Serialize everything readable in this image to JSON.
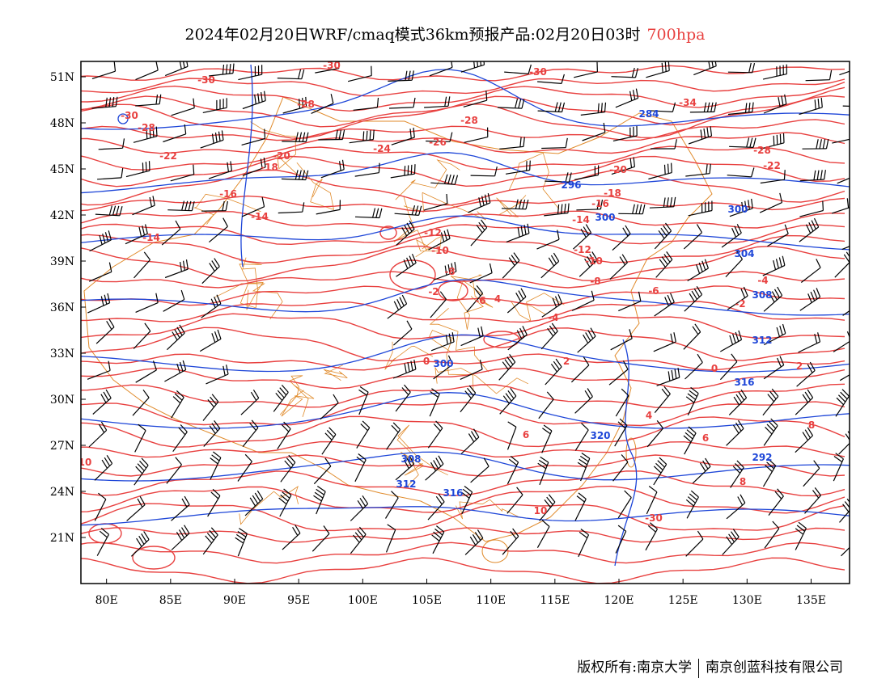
{
  "title": {
    "main": "2024年02月20日WRF/cmaq模式36km预报产品:02月20日03时",
    "level": "700hpa"
  },
  "copyright": {
    "owner": "版权所有:南京大学",
    "partner": "南京创蓝科技有限公司"
  },
  "axes": {
    "lon_ticks": [
      "80E",
      "85E",
      "90E",
      "95E",
      "100E",
      "105E",
      "110E",
      "115E",
      "120E",
      "125E",
      "130E",
      "135E"
    ],
    "lat_ticks": [
      "51N",
      "48N",
      "45N",
      "42N",
      "39N",
      "36N",
      "33N",
      "30N",
      "27N",
      "24N",
      "21N"
    ],
    "lon_range": [
      78,
      138
    ],
    "lat_range": [
      18,
      52
    ]
  },
  "colors": {
    "temperature": "#e8403f",
    "geopotential": "#1e46d8",
    "boundary": "#e08a2a",
    "wind": "#000000"
  },
  "contour_labels": {
    "temperature": [
      "-30",
      "-30",
      "-30",
      "-30",
      "-34",
      "-28",
      "-28",
      "-28",
      "-26",
      "-24",
      "-22",
      "-20",
      "-18",
      "-16",
      "-14",
      "-14",
      "-12",
      "-10",
      "-8",
      "-6",
      "-4",
      "-2",
      "0",
      "2",
      "4",
      "6",
      "8",
      "10",
      "-30",
      "-28",
      "-22",
      "-20",
      "-18",
      "-16",
      "-14",
      "-12",
      "-10",
      "-8",
      "-6",
      "-4",
      "-2",
      "0",
      "2",
      "4",
      "6",
      "8",
      "10"
    ],
    "geopotential": [
      "284",
      "296",
      "300",
      "300",
      "304",
      "308",
      "312",
      "316",
      "320",
      "292",
      "300",
      "308",
      "312",
      "316"
    ]
  }
}
